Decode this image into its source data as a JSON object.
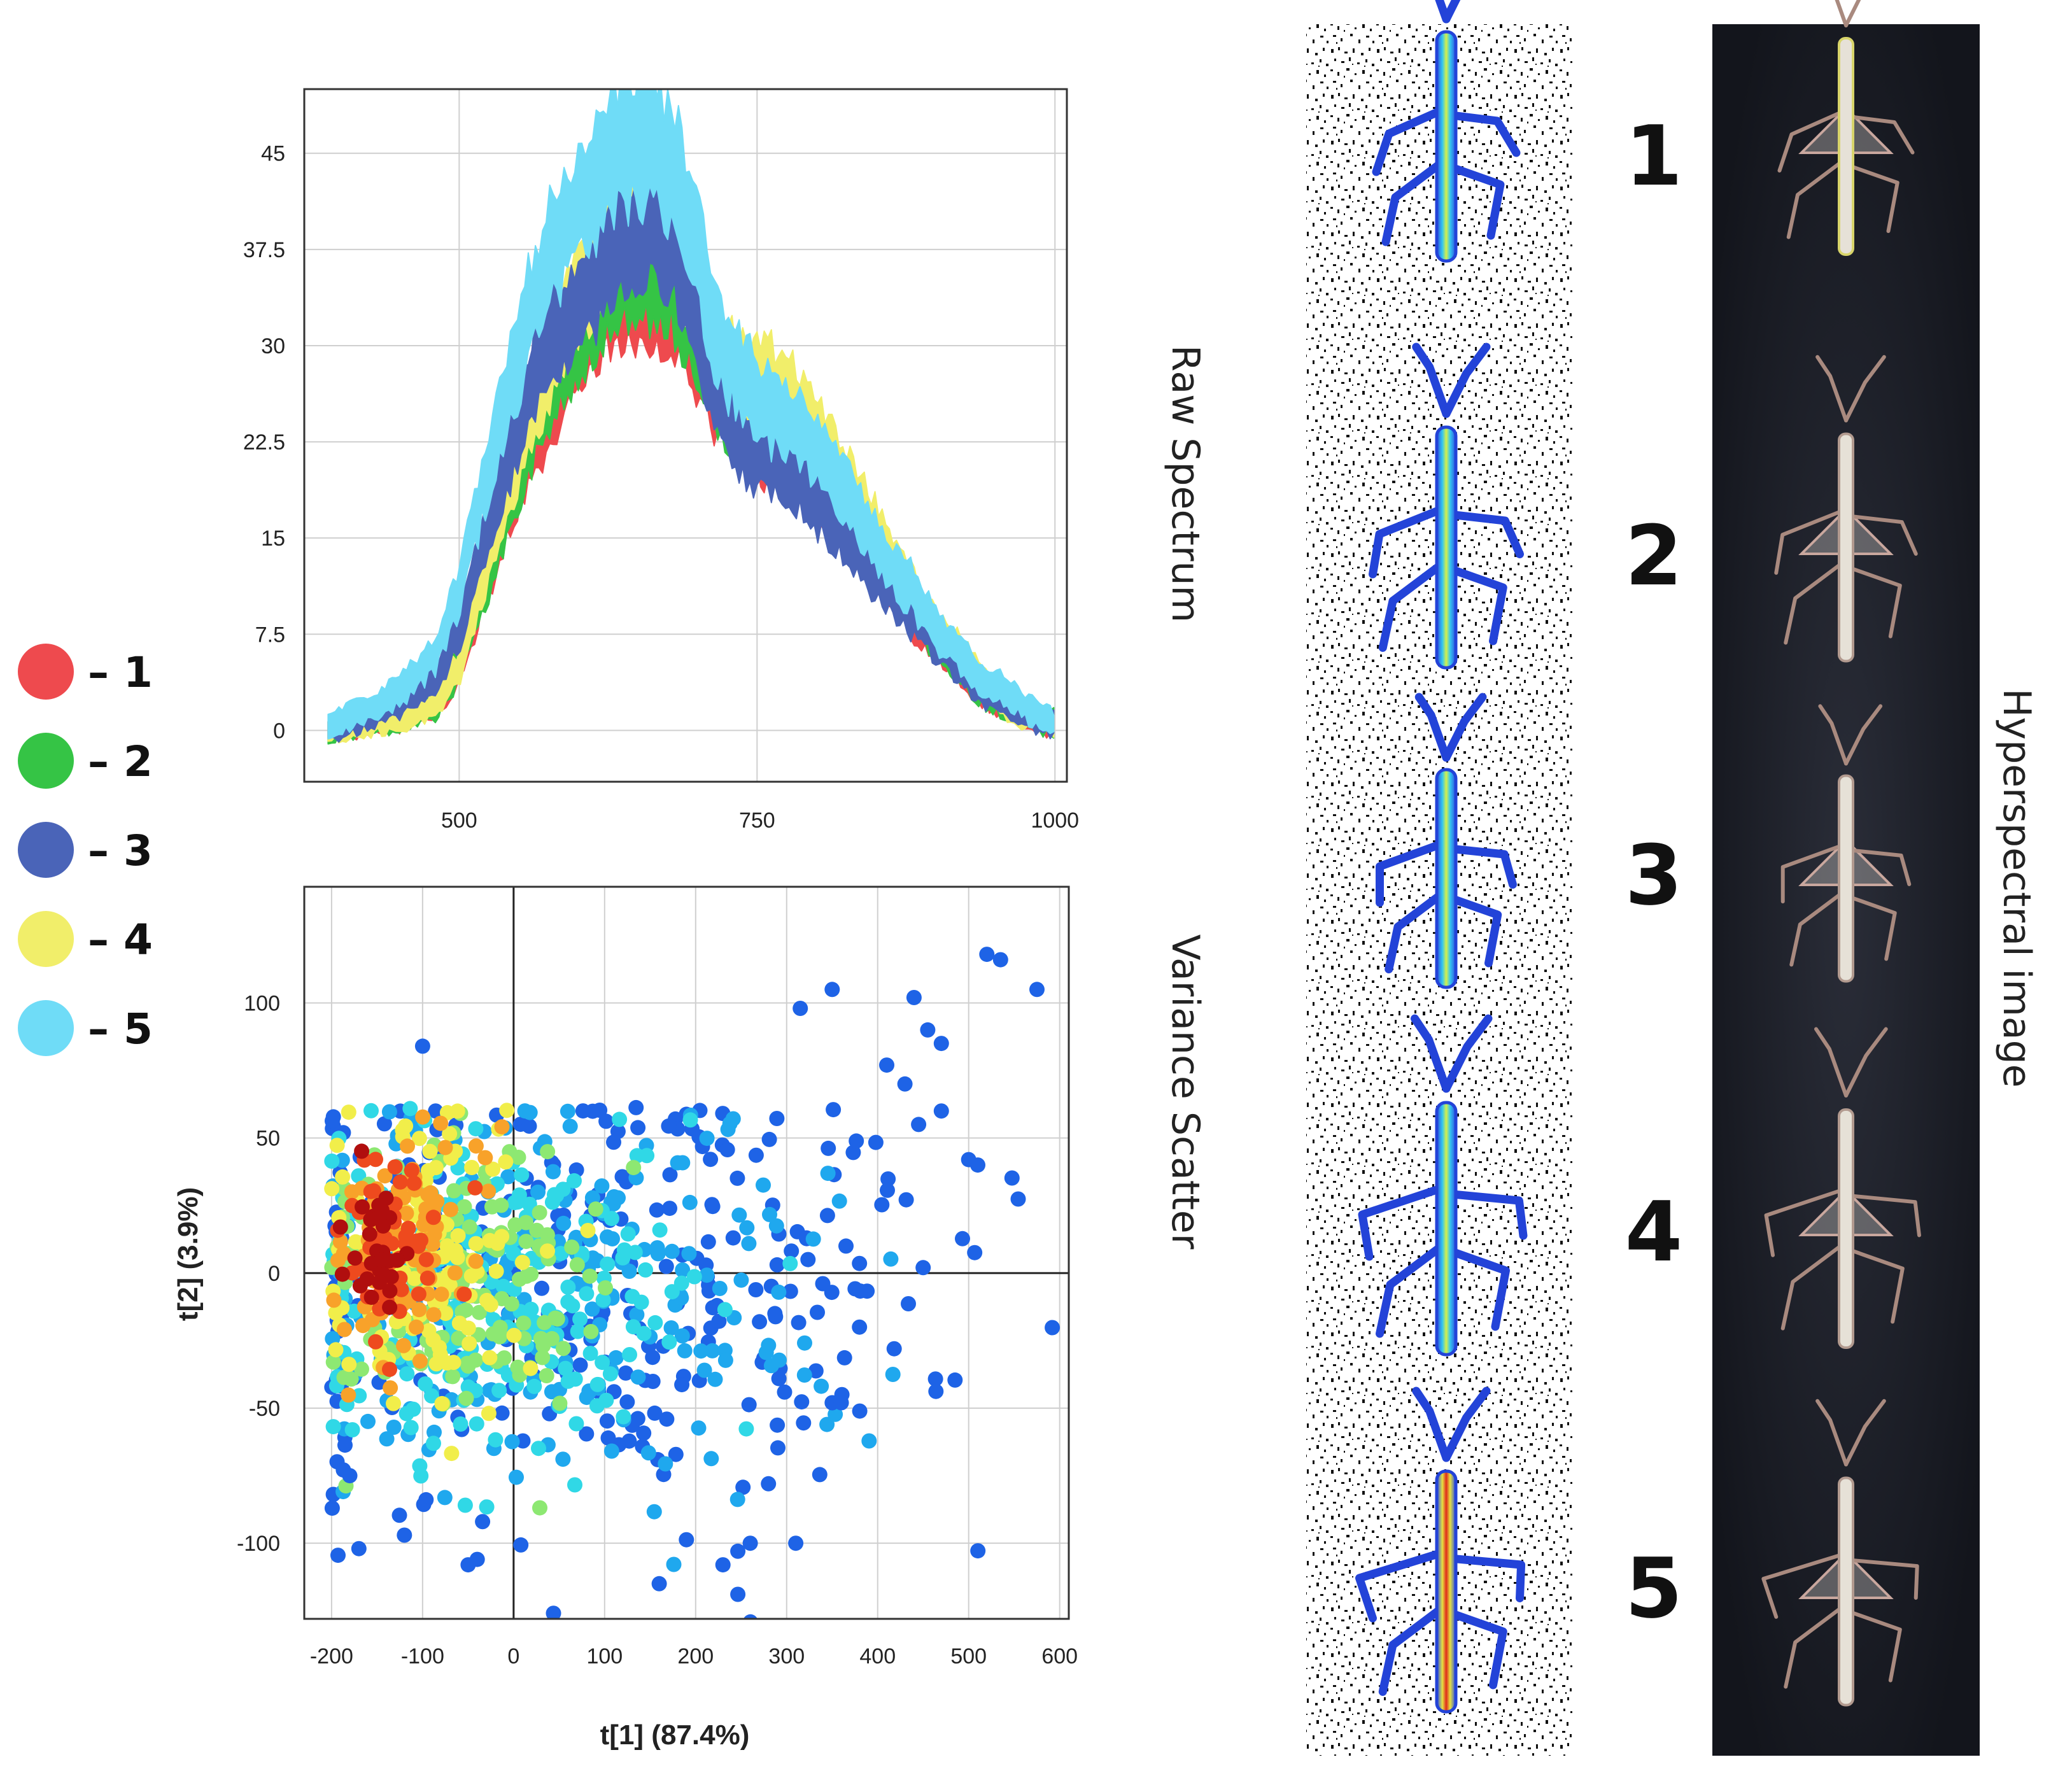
{
  "legend": [
    {
      "label": "– 1",
      "color": "#ee4a4e"
    },
    {
      "label": "– 2",
      "color": "#35c445"
    },
    {
      "label": "– 3",
      "color": "#4a64b8"
    },
    {
      "label": "– 4",
      "color": "#f1ee6a"
    },
    {
      "label": "– 5",
      "color": "#6fdcf7"
    }
  ],
  "labels": {
    "raw_spectrum": "Raw Spectrum",
    "variance_scatter": "Variance Scatter",
    "hyperspectral": "Hyperspectral image"
  },
  "specimens": [
    {
      "number": "1"
    },
    {
      "number": "2"
    },
    {
      "number": "3"
    },
    {
      "number": "4"
    },
    {
      "number": "5"
    }
  ],
  "chart_data": [
    {
      "type": "line",
      "title": "Raw Spectrum",
      "xlabel": "",
      "ylabel": "",
      "xlim": [
        370,
        1010
      ],
      "ylim": [
        -4,
        50
      ],
      "xticks": [
        "500",
        "750",
        "1000"
      ],
      "yticks": [
        "45",
        "37.5",
        "30",
        "22.5",
        "15",
        "7.5",
        "0"
      ],
      "grid": true,
      "x": [
        390,
        420,
        450,
        480,
        500,
        520,
        540,
        560,
        580,
        600,
        620,
        640,
        660,
        680,
        700,
        720,
        740,
        760,
        780,
        800,
        820,
        840,
        860,
        880,
        900,
        920,
        940,
        960,
        980,
        1000
      ],
      "series": [
        {
          "name": "1",
          "color": "#ee4a4e",
          "values": [
            0,
            0.5,
            1,
            2,
            5,
            11,
            17,
            22,
            26,
            30,
            33,
            34,
            34,
            33,
            29,
            25,
            23,
            22,
            21,
            19,
            17,
            14,
            12,
            9,
            7,
            5,
            3,
            2,
            1,
            0.5
          ]
        },
        {
          "name": "2",
          "color": "#35c445",
          "values": [
            0,
            0.5,
            1,
            2,
            5,
            11,
            17,
            23,
            28,
            31,
            34,
            36,
            36,
            35,
            30,
            26,
            24,
            24,
            23,
            21,
            18,
            15,
            12,
            10,
            7,
            5,
            3,
            2,
            1,
            0.5
          ]
        },
        {
          "name": "3",
          "color": "#4a64b8",
          "values": [
            0,
            1,
            2,
            4,
            8,
            15,
            21,
            27,
            31,
            33,
            36,
            38,
            39,
            38,
            32,
            26,
            22,
            21,
            20,
            18,
            16,
            13,
            11,
            9,
            7,
            5,
            3,
            2,
            1,
            0.5
          ]
        },
        {
          "name": "4",
          "color": "#f1ee6a",
          "values": [
            0,
            0.5,
            1,
            2,
            5,
            12,
            19,
            25,
            30,
            34,
            38,
            41,
            42,
            40,
            34,
            29,
            27,
            27,
            26,
            23,
            20,
            17,
            14,
            11,
            8,
            6,
            4,
            2,
            1,
            0.5
          ]
        },
        {
          "name": "5",
          "color": "#6fdcf7",
          "values": [
            0.5,
            1.5,
            3,
            6,
            11,
            19,
            26,
            33,
            38,
            41,
            44,
            46,
            46,
            44,
            37,
            30,
            27,
            25,
            24,
            22,
            19,
            16,
            13,
            11,
            8,
            6,
            4,
            3,
            1.5,
            0.5
          ]
        }
      ]
    },
    {
      "type": "scatter",
      "title": "Variance Scatter",
      "xlabel": "t[1] (87.4%)",
      "ylabel": "t[2] (3.9%)",
      "xlim": [
        -230,
        610
      ],
      "ylim": [
        -128,
        143
      ],
      "xticks": [
        "-200",
        "-100",
        "0",
        "100",
        "200",
        "300",
        "400",
        "500",
        "600"
      ],
      "yticks": [
        "100",
        "50",
        "0",
        "-50",
        "-100"
      ],
      "grid": true,
      "reference_lines": {
        "x": 0,
        "y": 0
      },
      "density_clusters": [
        {
          "cx": -150,
          "cy": 10,
          "sx": 16,
          "sy": 12,
          "n": 30,
          "color": "#b00e0e"
        },
        {
          "cx": -140,
          "cy": 10,
          "sx": 28,
          "sy": 18,
          "n": 55,
          "color": "#ee4a1e"
        },
        {
          "cx": -125,
          "cy": 8,
          "sx": 45,
          "sy": 22,
          "n": 90,
          "color": "#f8a22a"
        },
        {
          "cx": -100,
          "cy": 5,
          "sx": 60,
          "sy": 25,
          "n": 130,
          "color": "#f1ee4a"
        },
        {
          "cx": -60,
          "cy": 0,
          "sx": 80,
          "sy": 28,
          "n": 160,
          "color": "#8de872"
        },
        {
          "cx": -20,
          "cy": -5,
          "sx": 110,
          "sy": 30,
          "n": 220,
          "color": "#30d8e6"
        },
        {
          "cx": 40,
          "cy": -5,
          "sx": 160,
          "sy": 35,
          "n": 240,
          "color": "#1fa8ee"
        },
        {
          "cx": 100,
          "cy": -5,
          "sx": 200,
          "sy": 45,
          "n": 300,
          "color": "#1e63e6"
        }
      ],
      "outliers": [
        {
          "x": 520,
          "y": 118
        },
        {
          "x": 535,
          "y": 116
        },
        {
          "x": 575,
          "y": 105
        },
        {
          "x": 440,
          "y": 102
        },
        {
          "x": 350,
          "y": 105
        },
        {
          "x": 315,
          "y": 98
        },
        {
          "x": 455,
          "y": 90
        },
        {
          "x": 470,
          "y": 85
        },
        {
          "x": 410,
          "y": 77
        },
        {
          "x": 430,
          "y": 70
        },
        {
          "x": -100,
          "y": 84
        },
        {
          "x": 445,
          "y": 55
        },
        {
          "x": 500,
          "y": 42
        },
        {
          "x": 510,
          "y": 40
        },
        {
          "x": 470,
          "y": 60
        },
        {
          "x": 450,
          "y": 2
        },
        {
          "x": 380,
          "y": -20
        },
        {
          "x": 350,
          "y": -48
        },
        {
          "x": 360,
          "y": -48
        },
        {
          "x": 280,
          "y": -78
        },
        {
          "x": 310,
          "y": -100
        },
        {
          "x": -180,
          "y": -75
        },
        {
          "x": -170,
          "y": -102
        },
        {
          "x": -120,
          "y": -97
        },
        {
          "x": -50,
          "y": -108
        },
        {
          "x": -40,
          "y": -106
        },
        {
          "x": 160,
          "y": -115
        },
        {
          "x": 230,
          "y": -108
        },
        {
          "x": 260,
          "y": -100
        }
      ]
    }
  ]
}
